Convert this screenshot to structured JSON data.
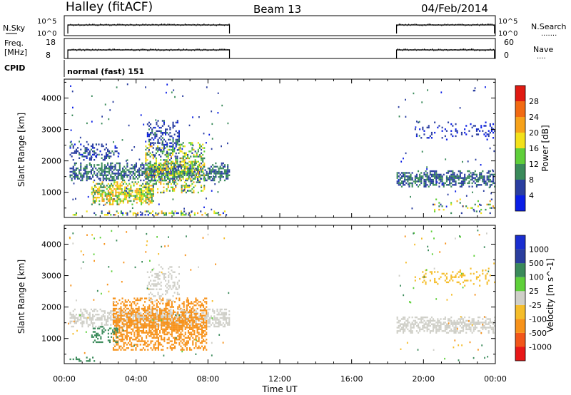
{
  "header": {
    "station": "Halley (fitACF)",
    "beam": "Beam 13",
    "date": "04/Feb/2014"
  },
  "panels": {
    "nsky": {
      "label": "N.Sky",
      "left_ticks": [
        "10^5",
        "10^0"
      ],
      "right_ticks": [
        "10^5",
        "10^0"
      ],
      "right_label": "N.Search",
      "right_dots": "......."
    },
    "freq": {
      "label_top": "Freq.",
      "label_bottom": "[MHz]",
      "left_ticks": [
        "18",
        "8"
      ],
      "right_ticks": [
        "60",
        "0"
      ],
      "right_label": "Nave",
      "right_dots": "...."
    },
    "cpid": {
      "label": "CPID",
      "value": "normal (fast) 151"
    }
  },
  "operation": {
    "segments_hours": [
      [
        0.2,
        9.2
      ],
      [
        18.5,
        23.95
      ]
    ]
  },
  "colors": {
    "power": [
      "#0a1ee6",
      "#2a3ea0",
      "#3a8a5a",
      "#5fcf3a",
      "#f3e11a",
      "#f7a21a",
      "#f26a12",
      "#e01a12"
    ],
    "velocity": [
      "#e81818",
      "#f2561a",
      "#f7921a",
      "#f5bd2a",
      "#cfcfc8",
      "#5fd03a",
      "#3a8a5a",
      "#2a3e9e",
      "#1a2ed0"
    ]
  },
  "chart_data": [
    {
      "type": "heatmap",
      "name": "power",
      "ylabel": "Slant Range [km]",
      "yticks": [
        "1000",
        "2000",
        "3000",
        "4000"
      ],
      "ylim": [
        200,
        4600
      ],
      "xlim": [
        0,
        24
      ],
      "colorbar": {
        "label": "Power [dB]",
        "ticks": [
          "4",
          "8",
          "12",
          "16",
          "20",
          "24",
          "28"
        ],
        "range": [
          0,
          32
        ]
      },
      "features": [
        {
          "x": [
            0.3,
            9.2
          ],
          "y": [
            1380,
            1950
          ],
          "value": 8,
          "spread": 4,
          "density": 0.75
        },
        {
          "x": [
            1.5,
            5.0
          ],
          "y": [
            640,
            1350
          ],
          "value": 16,
          "spread": 8,
          "density": 0.85
        },
        {
          "x": [
            4.5,
            7.8
          ],
          "y": [
            1000,
            2600
          ],
          "value": 14,
          "spread": 8,
          "density": 0.6
        },
        {
          "x": [
            4.6,
            6.4
          ],
          "y": [
            2200,
            3300
          ],
          "value": 6,
          "spread": 3,
          "density": 0.45
        },
        {
          "x": [
            0.3,
            3.0
          ],
          "y": [
            2050,
            2550
          ],
          "value": 6,
          "spread": 3,
          "density": 0.45
        },
        {
          "x": [
            0.3,
            9.2
          ],
          "y": [
            280,
            420
          ],
          "value": 12,
          "spread": 9,
          "density": 0.4
        },
        {
          "x": [
            18.5,
            23.95
          ],
          "y": [
            1200,
            1700
          ],
          "value": 8,
          "spread": 4,
          "density": 0.75
        },
        {
          "x": [
            19.5,
            23.95
          ],
          "y": [
            2700,
            3250
          ],
          "value": 4,
          "spread": 2,
          "density": 0.25
        },
        {
          "x": [
            20.5,
            23.95
          ],
          "y": [
            350,
            800
          ],
          "value": 14,
          "spread": 8,
          "density": 0.2
        }
      ]
    },
    {
      "type": "heatmap",
      "name": "velocity",
      "ylabel": "Slant Range [km]",
      "yticks": [
        "1000",
        "2000",
        "3000",
        "4000"
      ],
      "ylim": [
        200,
        4600
      ],
      "xlim": [
        0,
        24
      ],
      "xlabel": "Time UT",
      "xticks": [
        "00:00",
        "04:00",
        "08:00",
        "12:00",
        "16:00",
        "20:00",
        "00:00"
      ],
      "colorbar": {
        "label": "Velocity [m s^-1]",
        "ticks": [
          "-1000",
          "-500",
          "-100",
          "-25",
          "25",
          "100",
          "500",
          "1000"
        ]
      },
      "features": [
        {
          "x": [
            0.3,
            9.2
          ],
          "y": [
            1380,
            1950
          ],
          "value": 0,
          "spread": 0,
          "density": 0.75
        },
        {
          "x": [
            2.7,
            7.9
          ],
          "y": [
            650,
            2300
          ],
          "value": -300,
          "spread": 0,
          "density": 0.75
        },
        {
          "x": [
            1.5,
            3.0
          ],
          "y": [
            900,
            1400
          ],
          "value": 200,
          "spread": 0,
          "density": 0.4
        },
        {
          "x": [
            4.6,
            6.4
          ],
          "y": [
            2200,
            3300
          ],
          "value": 0,
          "spread": 0,
          "density": 0.35
        },
        {
          "x": [
            0.3,
            1.7
          ],
          "y": [
            280,
            420
          ],
          "value": 200,
          "spread": 0,
          "density": 0.5
        },
        {
          "x": [
            18.5,
            23.95
          ],
          "y": [
            1200,
            1700
          ],
          "value": 0,
          "spread": 0,
          "density": 0.75
        },
        {
          "x": [
            19.5,
            23.95
          ],
          "y": [
            2700,
            3250
          ],
          "value": -50,
          "spread": 0,
          "density": 0.2
        }
      ]
    }
  ]
}
